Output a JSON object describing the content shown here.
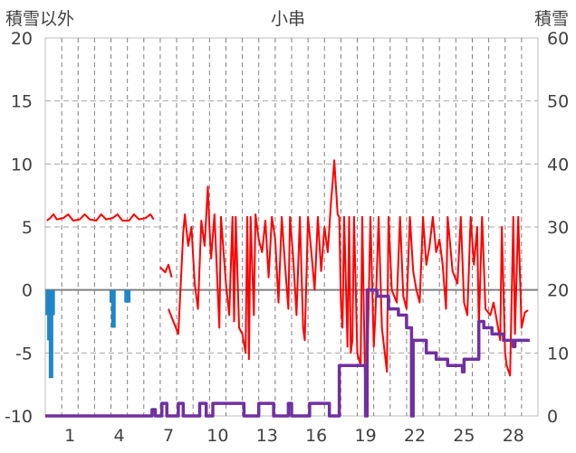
{
  "chart_data": {
    "type": "line",
    "title": "小串",
    "ylabel_left": "積雪以外",
    "ylabel_right": "積雪",
    "xlim": [
      -0.5,
      29.5
    ],
    "ylim_left": [
      -10,
      20
    ],
    "ylim_right": [
      0,
      60
    ],
    "grid": true,
    "x_tick_labels": [
      "1",
      "4",
      "7",
      "10",
      "13",
      "16",
      "19",
      "22",
      "25",
      "28"
    ],
    "x_tick_values": [
      1,
      4,
      7,
      10,
      13,
      16,
      19,
      22,
      25,
      28
    ],
    "y_left_tick_labels": [
      "20",
      "15",
      "10",
      "5",
      "0",
      "-5",
      "-10"
    ],
    "y_left_tick_values": [
      20,
      15,
      10,
      5,
      0,
      -5,
      -10
    ],
    "y_right_tick_labels": [
      "60",
      "50",
      "40",
      "30",
      "20",
      "10",
      "0"
    ],
    "y_right_tick_values": [
      60,
      50,
      40,
      30,
      20,
      10,
      0
    ],
    "zero_line": 0,
    "series": [
      {
        "axis": "left",
        "color": "#ff0000",
        "style": "line",
        "points": [
          [
            -0.4,
            5.5
          ],
          [
            -0.2,
            5.7
          ],
          [
            0.0,
            6.0
          ],
          [
            0.2,
            5.6
          ],
          [
            0.6,
            5.7
          ],
          [
            0.9,
            6.0
          ],
          [
            1.2,
            5.5
          ],
          [
            1.6,
            5.6
          ],
          [
            1.9,
            6.0
          ],
          [
            2.2,
            5.6
          ],
          [
            2.6,
            5.5
          ],
          [
            2.9,
            6.0
          ],
          [
            3.2,
            5.6
          ],
          [
            3.6,
            5.7
          ],
          [
            3.9,
            6.0
          ],
          [
            4.2,
            5.5
          ],
          [
            4.6,
            5.5
          ],
          [
            4.9,
            6.0
          ],
          [
            5.2,
            5.6
          ],
          [
            5.6,
            5.7
          ],
          [
            5.9,
            6.0
          ],
          [
            6.1,
            5.6
          ],
          null,
          [
            6.5,
            1.8
          ],
          [
            6.8,
            1.4
          ],
          [
            7.0,
            2.0
          ],
          [
            7.2,
            1.0
          ],
          null,
          [
            7.0,
            -1.5
          ],
          [
            7.3,
            -2.5
          ],
          [
            7.6,
            -3.5
          ],
          [
            7.9,
            4.5
          ],
          [
            8.0,
            6.0
          ],
          [
            8.2,
            3.5
          ],
          [
            8.4,
            5.0
          ],
          [
            8.6,
            0.5
          ],
          [
            8.8,
            -1.5
          ],
          [
            9.0,
            5.5
          ],
          [
            9.2,
            3.5
          ],
          [
            9.4,
            8.2
          ],
          [
            9.5,
            5.0
          ],
          [
            9.6,
            2.5
          ],
          [
            9.8,
            6.0
          ],
          [
            10.0,
            0.0
          ],
          [
            10.1,
            -3.0
          ],
          [
            10.2,
            5.8
          ],
          [
            10.5,
            0.5
          ],
          [
            10.7,
            -2.0
          ],
          [
            10.9,
            5.8
          ],
          [
            11.0,
            -2.5
          ],
          [
            11.1,
            5.8
          ],
          [
            11.3,
            -3.0
          ],
          [
            11.5,
            -3.5
          ],
          [
            11.7,
            -5.0
          ],
          [
            11.8,
            5.8
          ],
          [
            11.9,
            -5.5
          ],
          [
            12.0,
            5.8
          ],
          [
            12.2,
            -2.0
          ],
          [
            12.3,
            6.0
          ],
          [
            12.5,
            4.0
          ],
          [
            12.7,
            3.0
          ],
          [
            12.9,
            5.5
          ],
          [
            13.1,
            1.0
          ],
          [
            13.3,
            5.8
          ],
          [
            13.5,
            4.0
          ],
          [
            13.7,
            -1.0
          ],
          [
            13.9,
            5.8
          ],
          [
            14.1,
            2.0
          ],
          [
            14.3,
            -1.5
          ],
          [
            14.4,
            5.8
          ],
          [
            14.6,
            2.5
          ],
          [
            14.8,
            -2.0
          ],
          [
            15.0,
            5.8
          ],
          [
            15.2,
            -3.0
          ],
          [
            15.3,
            -4.0
          ],
          [
            15.5,
            5.8
          ],
          [
            15.7,
            3.0
          ],
          [
            15.9,
            0.0
          ],
          [
            16.1,
            5.8
          ],
          [
            16.3,
            1.5
          ],
          [
            16.5,
            5.0
          ],
          [
            16.7,
            3.0
          ],
          [
            16.9,
            7.0
          ],
          [
            17.0,
            8.5
          ],
          [
            17.1,
            10.3
          ],
          [
            17.3,
            6.0
          ],
          [
            17.4,
            5.8
          ],
          [
            17.5,
            -1.0
          ],
          [
            17.6,
            -3.0
          ],
          [
            17.7,
            5.8
          ],
          [
            17.9,
            -4.5
          ],
          [
            18.0,
            5.8
          ],
          [
            18.1,
            -5.0
          ],
          [
            18.2,
            -4.0
          ],
          [
            18.3,
            5.8
          ],
          [
            18.5,
            -5.0
          ],
          [
            18.7,
            -6.0
          ],
          [
            18.8,
            5.8
          ],
          [
            19.0,
            -9.5
          ],
          [
            19.1,
            -7.0
          ],
          [
            19.3,
            5.8
          ],
          [
            19.5,
            -4.5
          ],
          [
            19.6,
            -2.0
          ],
          [
            19.8,
            5.8
          ],
          [
            20.0,
            -3.0
          ],
          [
            20.3,
            -6.5
          ],
          [
            20.4,
            5.8
          ],
          [
            20.6,
            0.0
          ],
          [
            20.9,
            -1.0
          ],
          [
            21.1,
            5.8
          ],
          [
            21.3,
            -0.5
          ],
          [
            21.5,
            -1.5
          ],
          [
            21.7,
            5.8
          ],
          [
            21.9,
            1.5
          ],
          [
            22.1,
            0.0
          ],
          [
            22.3,
            -1.0
          ],
          [
            22.5,
            5.8
          ],
          [
            22.7,
            2.0
          ],
          [
            22.9,
            3.5
          ],
          [
            23.1,
            5.8
          ],
          [
            23.3,
            3.0
          ],
          [
            23.5,
            4.0
          ],
          [
            23.7,
            2.0
          ],
          [
            23.9,
            -1.5
          ],
          [
            24.0,
            5.8
          ],
          [
            24.3,
            1.5
          ],
          [
            24.6,
            0.5
          ],
          [
            24.8,
            5.8
          ],
          [
            25.0,
            -1.0
          ],
          [
            25.2,
            -2.0
          ],
          [
            25.4,
            5.8
          ],
          [
            25.6,
            2.0
          ],
          [
            25.8,
            5.0
          ],
          [
            25.9,
            -3.0
          ],
          [
            26.1,
            5.8
          ],
          [
            26.3,
            -1.5
          ],
          [
            26.6,
            -2.0
          ],
          [
            26.8,
            -1.0
          ],
          [
            27.0,
            -2.5
          ],
          [
            27.2,
            -4.0
          ],
          [
            27.3,
            5.0
          ],
          [
            27.5,
            -5.0
          ],
          [
            27.6,
            -6.0
          ],
          [
            27.8,
            -6.8
          ],
          [
            28.0,
            5.8
          ],
          [
            28.1,
            -3.5
          ],
          [
            28.3,
            5.8
          ],
          [
            28.5,
            -3.0
          ],
          [
            28.7,
            -1.8
          ],
          [
            28.9,
            -1.6
          ]
        ]
      },
      {
        "axis": "left",
        "color": "#1f86c8",
        "style": "bar",
        "bars": [
          [
            -0.35,
            -2.0
          ],
          [
            -0.25,
            -4.0
          ],
          [
            -0.15,
            -7.0
          ],
          [
            -0.05,
            -2.0
          ],
          [
            3.55,
            -1.0
          ],
          [
            3.65,
            -3.0
          ],
          [
            4.45,
            -1.0
          ],
          [
            4.55,
            -1.0
          ]
        ]
      },
      {
        "axis": "right",
        "color": "#7030a0",
        "style": "step",
        "points": [
          [
            -0.5,
            0
          ],
          [
            6.0,
            0
          ],
          [
            6.0,
            1
          ],
          [
            6.2,
            1
          ],
          [
            6.2,
            0
          ],
          [
            6.6,
            0
          ],
          [
            6.6,
            2
          ],
          [
            6.9,
            2
          ],
          [
            6.9,
            0
          ],
          [
            7.6,
            0
          ],
          [
            7.6,
            2
          ],
          [
            7.9,
            2
          ],
          [
            7.9,
            0
          ],
          [
            8.9,
            0
          ],
          [
            8.9,
            2
          ],
          [
            9.3,
            2
          ],
          [
            9.3,
            0
          ],
          [
            9.7,
            0
          ],
          [
            9.7,
            2
          ],
          [
            11.6,
            2
          ],
          [
            11.6,
            0
          ],
          [
            12.5,
            0
          ],
          [
            12.5,
            2
          ],
          [
            13.4,
            2
          ],
          [
            13.4,
            0
          ],
          [
            14.3,
            0
          ],
          [
            14.3,
            2
          ],
          [
            14.5,
            2
          ],
          [
            14.5,
            0
          ],
          [
            15.6,
            0
          ],
          [
            15.6,
            2
          ],
          [
            16.8,
            2
          ],
          [
            16.8,
            0
          ],
          [
            17.4,
            0
          ],
          [
            17.4,
            8
          ],
          [
            19.0,
            8
          ],
          [
            19.0,
            0
          ],
          [
            19.1,
            0
          ],
          [
            19.1,
            20
          ],
          [
            19.7,
            20
          ],
          [
            19.7,
            19
          ],
          [
            20.4,
            19
          ],
          [
            20.4,
            17
          ],
          [
            21.0,
            17
          ],
          [
            21.0,
            16
          ],
          [
            21.5,
            16
          ],
          [
            21.5,
            14
          ],
          [
            21.8,
            14
          ],
          [
            21.8,
            0
          ],
          [
            21.9,
            0
          ],
          [
            21.9,
            12
          ],
          [
            22.7,
            12
          ],
          [
            22.7,
            10
          ],
          [
            23.3,
            10
          ],
          [
            23.3,
            9
          ],
          [
            24.0,
            9
          ],
          [
            24.0,
            8
          ],
          [
            24.9,
            8
          ],
          [
            24.9,
            7
          ],
          [
            25.0,
            7
          ],
          [
            25.0,
            9
          ],
          [
            25.9,
            9
          ],
          [
            25.9,
            15
          ],
          [
            26.2,
            15
          ],
          [
            26.2,
            14
          ],
          [
            26.7,
            14
          ],
          [
            26.7,
            13
          ],
          [
            27.4,
            13
          ],
          [
            27.4,
            12
          ],
          [
            28.0,
            12
          ],
          [
            28.0,
            11
          ],
          [
            28.1,
            11
          ],
          [
            28.1,
            12
          ],
          [
            29.0,
            12
          ]
        ]
      }
    ]
  }
}
